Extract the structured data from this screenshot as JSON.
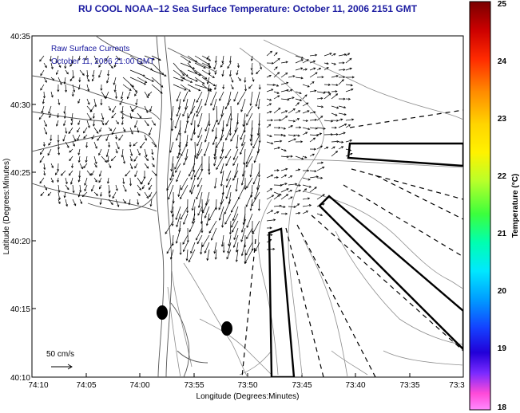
{
  "title": "RU COOL  NOAA−12  Sea Surface Temperature:  October 11, 2006 2151 GMT",
  "overlay": {
    "line1": "Raw Surface Currents",
    "line2": "October 11, 2006 21:00 GMT"
  },
  "scale": {
    "label": "50 cm/s"
  },
  "axes": {
    "xlabel": "Longitude (Degrees:Minutes)",
    "ylabel": "Latitude (Degrees:Minutes)",
    "xticks": [
      "74:10",
      "74:05",
      "74:00",
      "73:55",
      "73:50",
      "73:45",
      "73:40",
      "73:35",
      "73:3"
    ],
    "yticks": [
      "40:35",
      "40:30",
      "40:25",
      "40:20",
      "40:15",
      "40:10"
    ]
  },
  "colorbar": {
    "label": "Temperature (°C)",
    "ticks": [
      "25",
      "24",
      "23",
      "22",
      "21",
      "20",
      "19",
      "18"
    ]
  },
  "colors": {
    "title": "#1a1aa0",
    "overlay_text": "#1a1aa0",
    "land_contour": "#555555",
    "bathymetry": "#8c8c8c",
    "vectors": "#000000"
  }
}
